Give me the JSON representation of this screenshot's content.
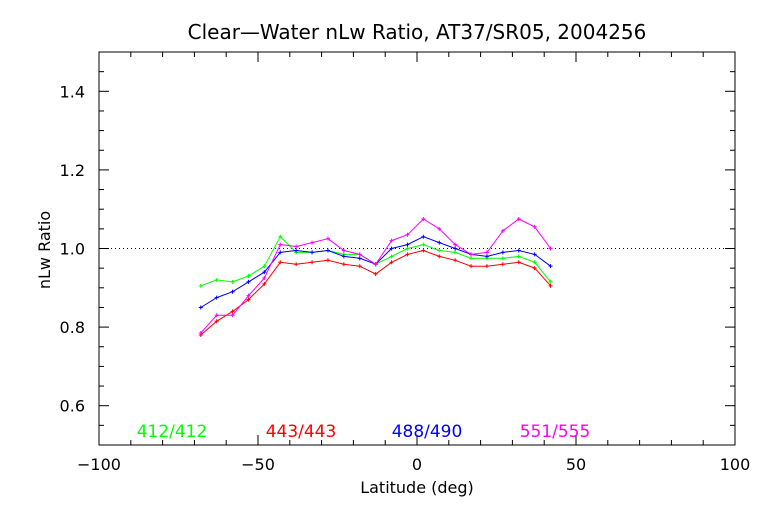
{
  "chart_data": {
    "type": "line",
    "title": "Clear—Water nLw Ratio, AT37/SR05, 2004256",
    "xlabel": "Latitude (deg)",
    "ylabel": "nLw Ratio",
    "xlim": [
      -100,
      100
    ],
    "ylim": [
      0.5,
      1.5
    ],
    "xticks": [
      -100,
      -50,
      0,
      50,
      100
    ],
    "yticks": [
      0.6,
      0.8,
      1.0,
      1.2,
      1.4
    ],
    "xtick_labels": [
      "−100",
      "−50",
      "0",
      "50",
      "100"
    ],
    "ytick_labels": [
      "0.6",
      "0.8",
      "1.0",
      "1.2",
      "1.4"
    ],
    "reference_line": {
      "y": 1.0,
      "style": "dotted"
    },
    "grid": false,
    "legend_position": "bottom",
    "series": [
      {
        "name": "412/412",
        "color": "#00ff00",
        "x": [
          -68,
          -63,
          -58,
          -53,
          -48,
          -43,
          -38,
          -33,
          -28,
          -23,
          -18,
          -13,
          -8,
          -3,
          2,
          7,
          12,
          17,
          22,
          27,
          32,
          37,
          42
        ],
        "y": [
          0.905,
          0.92,
          0.915,
          0.93,
          0.955,
          1.03,
          0.99,
          0.99,
          0.995,
          0.985,
          0.985,
          0.96,
          0.98,
          1.0,
          1.01,
          0.995,
          0.99,
          0.975,
          0.975,
          0.975,
          0.98,
          0.965,
          0.915
        ]
      },
      {
        "name": "443/443",
        "color": "#ff0000",
        "x": [
          -68,
          -63,
          -58,
          -53,
          -48,
          -43,
          -38,
          -33,
          -28,
          -23,
          -18,
          -13,
          -8,
          -3,
          2,
          7,
          12,
          17,
          22,
          27,
          32,
          37,
          42
        ],
        "y": [
          0.78,
          0.815,
          0.84,
          0.87,
          0.91,
          0.965,
          0.96,
          0.965,
          0.97,
          0.96,
          0.955,
          0.935,
          0.965,
          0.985,
          0.995,
          0.98,
          0.97,
          0.955,
          0.955,
          0.96,
          0.965,
          0.95,
          0.905
        ]
      },
      {
        "name": "488/490",
        "color": "#0000ff",
        "x": [
          -68,
          -63,
          -58,
          -53,
          -48,
          -43,
          -38,
          -33,
          -28,
          -23,
          -18,
          -13,
          -8,
          -3,
          2,
          7,
          12,
          17,
          22,
          27,
          32,
          37,
          42
        ],
        "y": [
          0.85,
          0.875,
          0.89,
          0.915,
          0.94,
          0.99,
          0.995,
          0.99,
          0.995,
          0.98,
          0.975,
          0.96,
          1.0,
          1.01,
          1.03,
          1.015,
          1.0,
          0.985,
          0.98,
          0.99,
          0.995,
          0.985,
          0.955
        ]
      },
      {
        "name": "551/555",
        "color": "#ff00ff",
        "x": [
          -68,
          -63,
          -58,
          -53,
          -48,
          -43,
          -38,
          -33,
          -28,
          -23,
          -18,
          -13,
          -8,
          -3,
          2,
          7,
          12,
          17,
          22,
          27,
          32,
          37,
          42
        ],
        "y": [
          0.785,
          0.83,
          0.83,
          0.88,
          0.925,
          1.01,
          1.005,
          1.015,
          1.025,
          0.995,
          0.985,
          0.96,
          1.02,
          1.035,
          1.075,
          1.05,
          1.01,
          0.985,
          0.99,
          1.045,
          1.075,
          1.055,
          1.0
        ]
      }
    ]
  }
}
